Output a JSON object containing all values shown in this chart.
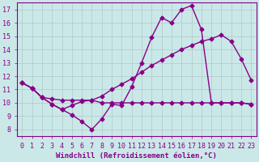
{
  "background_color": "#cbe8e8",
  "grid_color": "#b0c8c8",
  "line_color": "#880088",
  "marker": "D",
  "markersize": 2.5,
  "linewidth": 1.0,
  "xlabel": "Windchill (Refroidissement éolien,°C)",
  "xlabel_fontsize": 6.5,
  "tick_fontsize": 6.0,
  "xlim": [
    -0.5,
    23.5
  ],
  "ylim": [
    7.5,
    17.5
  ],
  "yticks": [
    8,
    9,
    10,
    11,
    12,
    13,
    14,
    15,
    16,
    17
  ],
  "xticks": [
    0,
    1,
    2,
    3,
    4,
    5,
    6,
    7,
    8,
    9,
    10,
    11,
    12,
    13,
    14,
    15,
    16,
    17,
    18,
    19,
    20,
    21,
    22,
    23
  ],
  "line1_x": [
    0,
    1,
    2,
    3,
    4,
    5,
    6,
    7,
    8,
    9,
    10,
    11,
    12,
    13,
    14,
    15,
    16,
    17,
    18,
    19,
    20,
    21,
    22,
    23
  ],
  "line1_y": [
    11.5,
    11.1,
    10.4,
    9.9,
    9.5,
    9.1,
    8.6,
    8.0,
    8.8,
    9.9,
    9.8,
    11.2,
    13.0,
    14.9,
    16.4,
    16.0,
    17.0,
    17.3,
    15.5,
    10.0,
    10.0,
    10.0,
    10.0,
    9.9
  ],
  "line2_x": [
    0,
    1,
    2,
    3,
    4,
    5,
    6,
    7,
    8,
    9,
    10,
    11,
    12,
    13,
    14,
    15,
    16,
    17,
    18,
    19,
    20,
    21,
    22,
    23
  ],
  "line2_y": [
    11.5,
    11.1,
    10.4,
    10.3,
    10.2,
    10.2,
    10.2,
    10.2,
    10.0,
    10.0,
    10.0,
    10.0,
    10.0,
    10.0,
    10.0,
    10.0,
    10.0,
    10.0,
    10.0,
    10.0,
    10.0,
    10.0,
    10.0,
    9.9
  ],
  "line3_x": [
    0,
    1,
    2,
    3,
    4,
    5,
    6,
    7,
    8,
    9,
    10,
    11,
    12,
    13,
    14,
    15,
    16,
    17,
    18,
    19,
    20,
    21,
    22,
    23
  ],
  "line3_y": [
    11.5,
    11.1,
    10.4,
    9.9,
    9.5,
    9.8,
    10.1,
    10.2,
    10.5,
    11.0,
    11.4,
    11.8,
    12.3,
    12.8,
    13.2,
    13.6,
    14.0,
    14.3,
    14.6,
    14.8,
    15.1,
    14.6,
    13.3,
    11.7
  ]
}
